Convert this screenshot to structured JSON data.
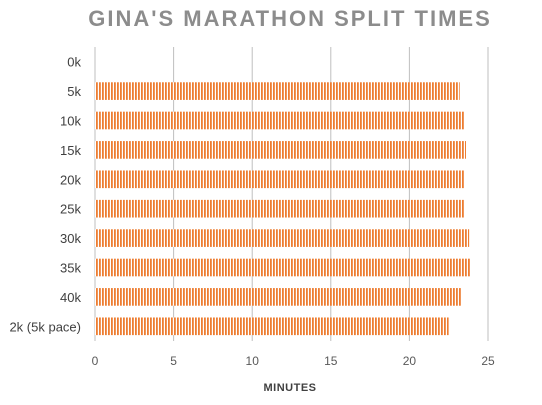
{
  "chart_data": {
    "type": "bar",
    "orientation": "horizontal",
    "title": "GINA'S MARATHON SPLIT TIMES",
    "xlabel": "MINUTES",
    "ylabel": "",
    "categories": [
      "0k",
      "5k",
      "10k",
      "15k",
      "20k",
      "25k",
      "30k",
      "35k",
      "40k",
      "2k (5k pace)"
    ],
    "values": [
      0,
      23.2,
      23.5,
      23.6,
      23.5,
      23.5,
      23.8,
      23.9,
      23.3,
      22.5
    ],
    "xlim": [
      0,
      25
    ],
    "xticks": [
      0,
      5,
      10,
      15,
      20,
      25
    ],
    "grid": "vertical",
    "legend": "none",
    "bar_color": "#ed7d31",
    "bar_pattern": "vertical-stripes"
  }
}
